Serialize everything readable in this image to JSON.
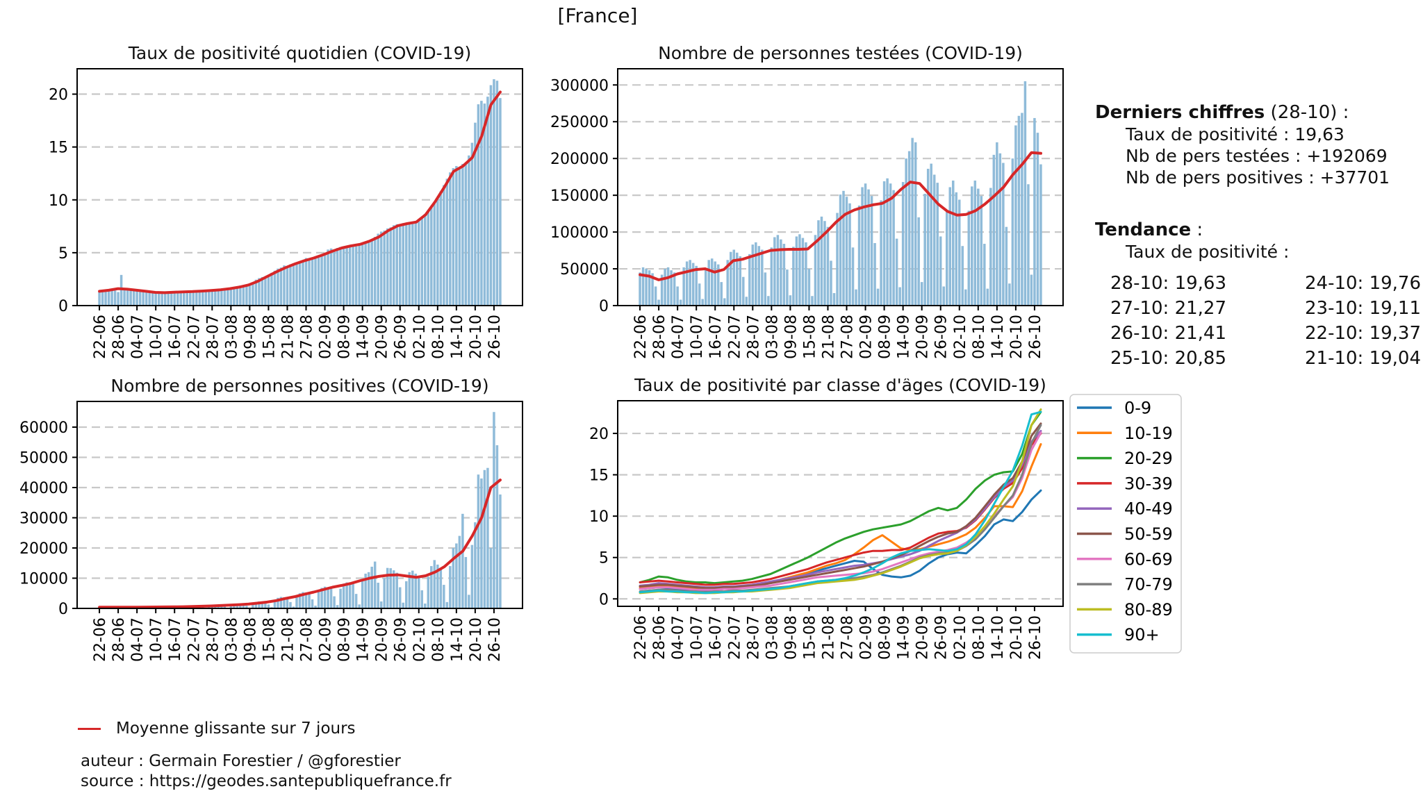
{
  "figure": {
    "title": "[France]"
  },
  "panel": {
    "derniers_bold": "Derniers chiffres",
    "derniers_rest": " (28-10) :",
    "taux_line": "Taux de positivité : 19,63",
    "testees_line": "Nb de pers testées : +192069",
    "positives_line": "Nb de pers positives : +37701",
    "tendance_bold": "Tendance",
    "tendance_rest": " :",
    "tendance_sub": "Taux de positivité :",
    "trend": {
      "left": [
        "28-10: 19,63",
        "27-10: 21,27",
        "26-10: 21,41",
        "25-10: 20,85"
      ],
      "right": [
        "24-10: 19,76",
        "23-10: 19,11",
        "22-10: 19,37",
        "21-10: 19,04"
      ]
    }
  },
  "ma_legend_label": "Moyenne glissante sur 7 jours",
  "footer": {
    "author": "auteur : Germain Forestier / @gforestier",
    "source": "source : https://geodes.santepubliquefrance.fr"
  },
  "shared": {
    "x_tick_labels": [
      "22-06",
      "28-06",
      "04-07",
      "10-07",
      "16-07",
      "22-07",
      "28-07",
      "03-08",
      "09-08",
      "15-08",
      "21-08",
      "27-08",
      "02-09",
      "08-09",
      "14-09",
      "20-09",
      "26-09",
      "02-10",
      "08-10",
      "14-10",
      "20-10",
      "26-10"
    ],
    "x_tick_step_days": 6,
    "n_days": 129,
    "colors": {
      "bar": "#8fbbd9",
      "ma": "#d62728",
      "grid": "#c8c8c8",
      "axis": "#000000"
    }
  },
  "chart_data": [
    {
      "id": "taux-quotidien",
      "type": "bar",
      "title": "Taux de positivité quotidien (COVID-19)",
      "ylim": [
        0,
        22.4
      ],
      "yticks": [
        0,
        5,
        10,
        15,
        20
      ],
      "ytick_labels": [
        "0",
        "5",
        "10",
        "15",
        "20"
      ],
      "grid": [
        5,
        10,
        15,
        20
      ],
      "bars": [
        1.3,
        1.32,
        1.38,
        1.42,
        1.5,
        1.42,
        1.28,
        2.9,
        1.55,
        1.5,
        1.55,
        1.48,
        1.35,
        1.3,
        1.42,
        1.38,
        1.32,
        1.25,
        1.18,
        1.15,
        1.25,
        1.28,
        1.2,
        1.22,
        1.3,
        1.35,
        1.28,
        1.25,
        1.32,
        1.3,
        1.28,
        1.35,
        1.42,
        1.38,
        1.3,
        1.45,
        1.5,
        1.48,
        1.55,
        1.6,
        1.65,
        1.55,
        1.62,
        1.7,
        1.8,
        1.9,
        1.85,
        2.0,
        2.1,
        2.2,
        2.45,
        2.6,
        2.7,
        2.6,
        2.9,
        3.1,
        3.3,
        3.5,
        3.6,
        3.8,
        3.7,
        3.9,
        4.0,
        4.1,
        4.05,
        4.3,
        4.5,
        4.4,
        4.55,
        4.6,
        4.7,
        4.8,
        5.0,
        5.3,
        5.4,
        5.1,
        5.45,
        5.55,
        5.5,
        5.6,
        5.7,
        5.75,
        5.6,
        5.85,
        5.9,
        6.0,
        6.1,
        6.3,
        6.5,
        6.8,
        7.0,
        7.1,
        7.3,
        7.4,
        7.6,
        7.7,
        7.5,
        7.8,
        7.7,
        7.8,
        7.9,
        7.8,
        8.0,
        8.3,
        8.6,
        9.0,
        9.4,
        9.8,
        10.2,
        10.8,
        11.4,
        12.0,
        12.6,
        13.0,
        13.2,
        13.1,
        13.4,
        13.5,
        14.2,
        15.4,
        17.3,
        19.04,
        19.37,
        19.11,
        19.76,
        20.85,
        21.41,
        21.27,
        19.63
      ],
      "ma": [
        1.35,
        1.45,
        1.6,
        1.55,
        1.45,
        1.35,
        1.25,
        1.22,
        1.27,
        1.3,
        1.33,
        1.37,
        1.43,
        1.5,
        1.6,
        1.75,
        1.95,
        2.3,
        2.75,
        3.2,
        3.6,
        3.95,
        4.25,
        4.5,
        4.8,
        5.15,
        5.45,
        5.65,
        5.8,
        6.1,
        6.5,
        7.1,
        7.55,
        7.75,
        7.9,
        8.6,
        9.8,
        11.2,
        12.7,
        13.2,
        14.0,
        16.0,
        19.0,
        20.2
      ]
    },
    {
      "id": "personnes-testees",
      "type": "bar",
      "title": "Nombre de personnes testées (COVID-19)",
      "ylim": [
        0,
        322000
      ],
      "yticks": [
        0,
        50000,
        100000,
        150000,
        200000,
        250000,
        300000
      ],
      "ytick_labels": [
        "0",
        "50000",
        "100000",
        "150000",
        "200000",
        "250000",
        "300000"
      ],
      "grid": [
        50000,
        100000,
        150000,
        200000,
        250000,
        300000
      ],
      "bars": [
        45000,
        52000,
        50000,
        48000,
        44000,
        26000,
        8000,
        42000,
        50000,
        52000,
        48000,
        45000,
        26000,
        8000,
        52000,
        60000,
        62000,
        58000,
        54000,
        30000,
        9000,
        50000,
        62000,
        64000,
        60000,
        56000,
        32000,
        10000,
        62000,
        73000,
        76000,
        72000,
        67000,
        39000,
        12000,
        70000,
        83000,
        86000,
        81000,
        76000,
        45000,
        13000,
        79000,
        93000,
        96000,
        90000,
        84000,
        49000,
        14000,
        80000,
        94000,
        97000,
        92000,
        86000,
        50000,
        13000,
        96000,
        116000,
        121000,
        115000,
        107000,
        61000,
        17000,
        126000,
        151000,
        156000,
        148000,
        139000,
        79000,
        22000,
        136000,
        161000,
        166000,
        158000,
        149000,
        85000,
        23000,
        143000,
        169000,
        173000,
        166000,
        157000,
        91000,
        25000,
        168000,
        200000,
        210000,
        228000,
        222000,
        120000,
        32000,
        152000,
        186000,
        193000,
        178000,
        167000,
        94000,
        26000,
        129000,
        161000,
        170000,
        154000,
        144000,
        81000,
        22000,
        129000,
        162000,
        170000,
        159000,
        149000,
        84000,
        23000,
        160000,
        205000,
        222000,
        207000,
        194000,
        107000,
        30000,
        200000,
        245000,
        258000,
        262000,
        305000,
        165000,
        42000,
        255000,
        235000,
        192069
      ],
      "ma": [
        42000,
        40000,
        35000,
        38000,
        43000,
        46000,
        49000,
        50000,
        45500,
        49000,
        61000,
        63000,
        67000,
        71000,
        75000,
        76000,
        76500,
        76500,
        77000,
        88000,
        100000,
        113000,
        124000,
        130000,
        134000,
        137000,
        139000,
        146000,
        158000,
        168000,
        166000,
        152000,
        138000,
        128000,
        123000,
        124000,
        129000,
        138000,
        149000,
        161000,
        178000,
        192000,
        208000,
        207000
      ]
    },
    {
      "id": "personnes-positives",
      "type": "bar",
      "title": "Nombre de personnes positives (COVID-19)",
      "ylim": [
        0,
        68500
      ],
      "yticks": [
        0,
        10000,
        20000,
        30000,
        40000,
        50000,
        60000
      ],
      "ytick_labels": [
        "0",
        "10000",
        "20000",
        "30000",
        "40000",
        "50000",
        "60000"
      ],
      "grid": [
        10000,
        20000,
        30000,
        40000,
        50000,
        60000
      ],
      "bars": [
        500,
        600,
        560,
        520,
        500,
        330,
        110,
        550,
        640,
        620,
        560,
        540,
        320,
        100,
        600,
        700,
        720,
        640,
        600,
        350,
        110,
        560,
        700,
        740,
        680,
        640,
        380,
        120,
        700,
        900,
        950,
        900,
        850,
        500,
        150,
        900,
        1100,
        1200,
        1150,
        1100,
        650,
        200,
        1200,
        1500,
        1600,
        1500,
        1450,
        850,
        250,
        1700,
        2100,
        2300,
        2300,
        2200,
        1300,
        400,
        2800,
        3500,
        3800,
        3700,
        3500,
        2100,
        600,
        4000,
        5000,
        5400,
        5300,
        5100,
        3000,
        900,
        5500,
        6800,
        7200,
        7000,
        6800,
        4000,
        1100,
        6500,
        8200,
        8600,
        8400,
        8100,
        4800,
        1300,
        9500,
        11500,
        12000,
        13800,
        15500,
        8500,
        2300,
        10000,
        13400,
        13300,
        12600,
        11800,
        7000,
        1900,
        9000,
        12000,
        12500,
        11500,
        10500,
        6000,
        1600,
        10500,
        14000,
        16000,
        14500,
        13000,
        7800,
        2100,
        14000,
        20000,
        21500,
        24000,
        31300,
        17000,
        4500,
        21000,
        28500,
        44300,
        43000,
        45800,
        46500,
        20000,
        65000,
        54000,
        37701
      ],
      "ma": [
        400,
        390,
        380,
        400,
        420,
        440,
        470,
        490,
        510,
        560,
        640,
        720,
        800,
        950,
        1080,
        1250,
        1450,
        1750,
        2100,
        2600,
        3300,
        3900,
        4700,
        5400,
        6200,
        7000,
        7600,
        8300,
        9200,
        10000,
        10600,
        11000,
        11100,
        10700,
        10300,
        10800,
        12000,
        13800,
        16500,
        19000,
        24000,
        30000,
        40000,
        42500
      ]
    },
    {
      "id": "taux-par-ages",
      "type": "line",
      "title": "Taux de positivité par classe d'âges (COVID-19)",
      "ylim": [
        -0.9,
        23.95
      ],
      "yticks": [
        0,
        5,
        10,
        15,
        20
      ],
      "ytick_labels": [
        "0",
        "5",
        "10",
        "15",
        "20"
      ],
      "grid": [
        0,
        5,
        10,
        15,
        20
      ],
      "legend_position": "right",
      "series": [
        {
          "name": "0-9",
          "color": "#1f77b4",
          "values": [
            1.2,
            1.3,
            1.4,
            1.3,
            1.2,
            1.1,
            1.0,
            1.0,
            1.1,
            1.2,
            1.3,
            1.4,
            1.5,
            1.7,
            2.0,
            2.3,
            2.6,
            2.8,
            3.1,
            3.4,
            3.7,
            4.0,
            4.3,
            4.6,
            4.5,
            3.6,
            2.9,
            2.7,
            2.6,
            2.8,
            3.4,
            4.3,
            5.0,
            5.4,
            5.6,
            5.5,
            6.5,
            7.6,
            9.0,
            9.6,
            9.4,
            10.5,
            12.0,
            13.1
          ]
        },
        {
          "name": "10-19",
          "color": "#ff7f0e",
          "values": [
            1.4,
            1.5,
            1.6,
            1.5,
            1.4,
            1.3,
            1.2,
            1.2,
            1.3,
            1.3,
            1.4,
            1.5,
            1.6,
            1.8,
            2.0,
            2.3,
            2.6,
            2.9,
            3.2,
            3.6,
            4.0,
            4.3,
            4.7,
            5.4,
            6.2,
            7.1,
            7.7,
            6.9,
            6.1,
            5.9,
            6.0,
            6.3,
            6.6,
            6.9,
            7.3,
            7.8,
            8.6,
            9.8,
            11.2,
            11.2,
            11.1,
            13.0,
            16.0,
            18.7
          ]
        },
        {
          "name": "20-29",
          "color": "#2ca02c",
          "values": [
            2.0,
            2.3,
            2.7,
            2.6,
            2.3,
            2.1,
            2.0,
            2.0,
            1.9,
            2.0,
            2.1,
            2.2,
            2.4,
            2.7,
            3.0,
            3.5,
            4.0,
            4.5,
            5.0,
            5.6,
            6.2,
            6.8,
            7.3,
            7.7,
            8.1,
            8.4,
            8.6,
            8.8,
            9.0,
            9.4,
            10.0,
            10.6,
            11.0,
            10.7,
            11.0,
            12.0,
            13.3,
            14.3,
            15.0,
            15.3,
            15.4,
            17.5,
            21.0,
            22.6
          ]
        },
        {
          "name": "30-39",
          "color": "#d62728",
          "values": [
            2.0,
            2.1,
            2.2,
            2.1,
            2.0,
            1.9,
            1.8,
            1.7,
            1.7,
            1.8,
            1.8,
            1.9,
            2.0,
            2.2,
            2.4,
            2.7,
            3.0,
            3.3,
            3.6,
            4.0,
            4.4,
            4.7,
            5.0,
            5.3,
            5.6,
            5.8,
            5.8,
            5.9,
            5.9,
            6.2,
            6.8,
            7.4,
            7.9,
            8.1,
            8.2,
            8.6,
            9.5,
            10.8,
            12.2,
            13.3,
            14.0,
            15.8,
            18.6,
            20.0
          ]
        },
        {
          "name": "40-49",
          "color": "#9467bd",
          "values": [
            1.6,
            1.7,
            1.9,
            1.8,
            1.7,
            1.6,
            1.5,
            1.4,
            1.4,
            1.5,
            1.5,
            1.6,
            1.7,
            1.9,
            2.1,
            2.3,
            2.5,
            2.7,
            2.9,
            3.2,
            3.4,
            3.6,
            3.8,
            4.0,
            4.1,
            4.3,
            4.5,
            4.8,
            5.1,
            5.4,
            5.8,
            6.4,
            7.0,
            7.5,
            8.0,
            8.7,
            9.6,
            10.9,
            12.3,
            13.5,
            14.3,
            16.2,
            19.0,
            20.3
          ]
        },
        {
          "name": "50-59",
          "color": "#8c564b",
          "values": [
            1.5,
            1.6,
            1.7,
            1.7,
            1.6,
            1.5,
            1.4,
            1.3,
            1.3,
            1.4,
            1.4,
            1.5,
            1.6,
            1.7,
            1.9,
            2.1,
            2.3,
            2.5,
            2.7,
            2.9,
            3.1,
            3.3,
            3.5,
            3.7,
            3.9,
            4.2,
            4.5,
            4.9,
            5.3,
            5.8,
            6.4,
            7.0,
            7.5,
            7.9,
            8.1,
            8.8,
            9.8,
            11.2,
            12.6,
            13.8,
            14.6,
            16.6,
            19.7,
            21.2
          ]
        },
        {
          "name": "60-69",
          "color": "#e377c2",
          "values": [
            1.2,
            1.3,
            1.4,
            1.4,
            1.3,
            1.2,
            1.1,
            1.1,
            1.1,
            1.2,
            1.2,
            1.3,
            1.4,
            1.5,
            1.6,
            1.8,
            2.0,
            2.2,
            2.4,
            2.6,
            2.7,
            2.8,
            2.9,
            3.0,
            3.1,
            3.3,
            3.6,
            4.0,
            4.4,
            4.8,
            5.2,
            5.5,
            5.7,
            5.9,
            6.2,
            6.8,
            7.6,
            8.7,
            10.0,
            11.2,
            12.3,
            14.6,
            18.0,
            20.1
          ]
        },
        {
          "name": "70-79",
          "color": "#7f7f7f",
          "values": [
            0.9,
            1.0,
            1.1,
            1.1,
            1.0,
            0.9,
            0.9,
            0.8,
            0.9,
            0.9,
            1.0,
            1.0,
            1.1,
            1.2,
            1.3,
            1.4,
            1.5,
            1.7,
            1.9,
            2.1,
            2.2,
            2.3,
            2.4,
            2.5,
            2.7,
            2.9,
            3.2,
            3.6,
            4.0,
            4.5,
            5.0,
            5.3,
            5.5,
            5.6,
            5.8,
            6.4,
            7.2,
            8.4,
            9.8,
            11.2,
            12.5,
            15.0,
            18.8,
            21.0
          ]
        },
        {
          "name": "80-89",
          "color": "#bcbd22",
          "values": [
            0.7,
            0.8,
            0.9,
            0.9,
            0.8,
            0.8,
            0.7,
            0.7,
            0.7,
            0.8,
            0.8,
            0.9,
            0.9,
            1.0,
            1.1,
            1.2,
            1.3,
            1.5,
            1.7,
            1.9,
            2.0,
            2.1,
            2.2,
            2.3,
            2.5,
            2.8,
            3.1,
            3.5,
            3.9,
            4.4,
            4.9,
            5.2,
            5.4,
            5.5,
            5.8,
            6.5,
            7.5,
            8.8,
            10.3,
            12.0,
            13.6,
            16.6,
            21.0,
            22.9
          ]
        },
        {
          "name": "90+",
          "color": "#17becf",
          "values": [
            0.8,
            0.9,
            1.0,
            0.9,
            0.9,
            0.8,
            0.8,
            0.7,
            0.8,
            0.8,
            0.9,
            0.9,
            1.0,
            1.1,
            1.2,
            1.3,
            1.5,
            1.7,
            1.9,
            2.1,
            2.2,
            2.3,
            2.5,
            2.8,
            3.2,
            3.7,
            4.3,
            5.0,
            5.5,
            5.8,
            5.9,
            6.0,
            5.9,
            5.8,
            6.0,
            6.6,
            7.8,
            9.5,
            11.5,
            13.5,
            15.5,
            18.5,
            22.3,
            22.6
          ]
        }
      ]
    }
  ]
}
